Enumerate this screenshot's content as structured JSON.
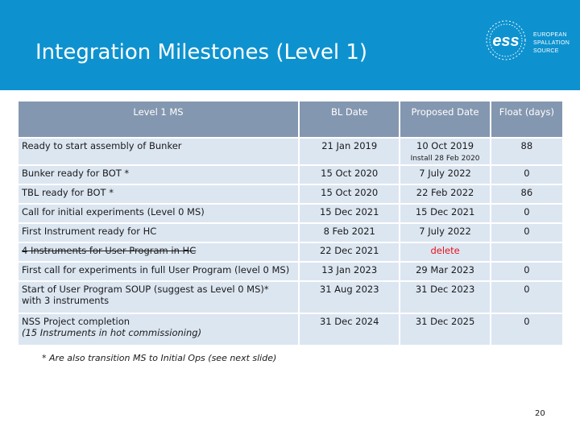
{
  "header": {
    "title": "Integration Milestones (Level 1)",
    "logo_mark": "ess",
    "logo_lines": [
      "EUROPEAN",
      "SPALLATION",
      "SOURCE"
    ],
    "band_color": "#0e92cf"
  },
  "table": {
    "columns": [
      "Level 1 MS",
      "BL Date",
      "Proposed Date",
      "Float (days)"
    ],
    "rows": [
      {
        "ms": "Ready to start assembly of Bunker",
        "ms2": "",
        "bl": "21 Jan 2019",
        "proposed": "10 Oct 2019",
        "proposed_note": "Install 28 Feb 2020",
        "float": "88"
      },
      {
        "ms": "Bunker ready for BOT *",
        "ms2": "",
        "bl": "15 Oct 2020",
        "proposed": "7 July 2022",
        "proposed_note": "",
        "float": "0"
      },
      {
        "ms": "TBL ready for BOT *",
        "ms2": "",
        "bl": "15 Oct 2020",
        "proposed": "22 Feb 2022",
        "proposed_note": "",
        "float": "86"
      },
      {
        "ms": "Call for initial experiments (Level 0 MS)",
        "ms2": "",
        "bl": "15 Dec 2021",
        "proposed": "15 Dec 2021",
        "proposed_note": "",
        "float": "0"
      },
      {
        "ms": "First Instrument ready for HC",
        "ms2": "",
        "bl": "8 Feb 2021",
        "proposed": "7 July 2022",
        "proposed_note": "",
        "float": "0"
      },
      {
        "ms": "4 Instruments for User Program in HC",
        "ms2": "",
        "bl": "22 Dec 2021",
        "proposed": "delete",
        "proposed_note": "",
        "float": "",
        "struck": true
      },
      {
        "ms": "First call for experiments in full User Program (level 0 MS)",
        "ms2": "",
        "bl": "13 Jan 2023",
        "proposed": "29 Mar 2023",
        "proposed_note": "",
        "float": "0"
      },
      {
        "ms": "Start of User Program SOUP  (suggest as Level 0 MS)*",
        "ms2": "with 3 instruments",
        "bl": "31 Aug 2023",
        "proposed": "31 Dec 2023",
        "proposed_note": "",
        "float": "0"
      },
      {
        "ms": "NSS Project completion",
        "ms2": "(15 Instruments in hot commissioning)",
        "bl": "31 Dec 2024",
        "proposed": "31 Dec 2025",
        "proposed_note": "",
        "float": "0"
      }
    ],
    "header_color": "#8497b0",
    "cell_color": "#dce6f1",
    "delete_color": "#e8111a"
  },
  "footnote": "* Are also transition MS to Initial Ops (see next slide)",
  "page_number": "20"
}
